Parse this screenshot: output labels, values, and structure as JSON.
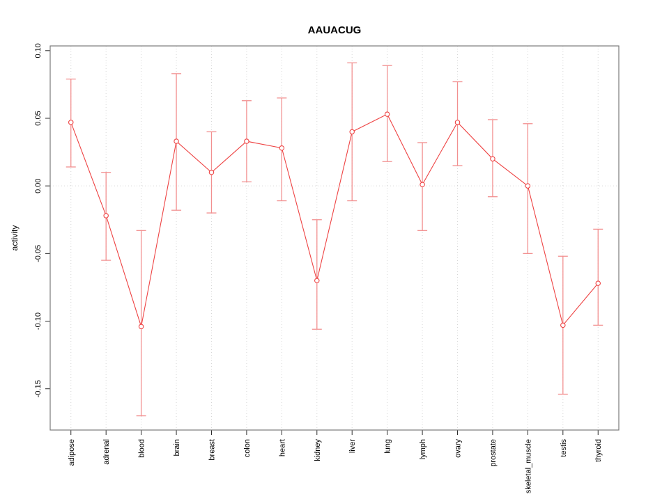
{
  "chart_data": {
    "type": "line",
    "title": "AAUACUG",
    "xlabel": "",
    "ylabel": "activity",
    "marker": "open-circle",
    "grid": {
      "vertical_per_category": true,
      "horizontal_at_zero": true,
      "style": "dotted"
    },
    "legend": null,
    "categories": [
      "adipose",
      "adrenal",
      "blood",
      "brain",
      "breast",
      "colon",
      "heart",
      "kidney",
      "liver",
      "lung",
      "lymph",
      "ovary",
      "prostate",
      "skeletal_muscle",
      "testis",
      "thyroid"
    ],
    "series": [
      {
        "name": "activity",
        "values": [
          0.047,
          -0.022,
          -0.104,
          0.033,
          0.01,
          0.033,
          0.028,
          -0.07,
          0.04,
          0.053,
          0.001,
          0.047,
          0.02,
          0.0,
          -0.103,
          -0.072
        ],
        "error_high": [
          0.079,
          0.01,
          -0.033,
          0.083,
          0.04,
          0.063,
          0.065,
          -0.025,
          0.091,
          0.089,
          0.032,
          0.077,
          0.049,
          0.046,
          -0.052,
          -0.032
        ],
        "error_low": [
          0.014,
          -0.055,
          -0.17,
          -0.018,
          -0.02,
          0.003,
          -0.011,
          -0.106,
          -0.011,
          0.018,
          -0.033,
          0.015,
          -0.008,
          -0.05,
          -0.154,
          -0.103
        ]
      }
    ],
    "yticks": [
      0.1,
      0.05,
      0.0,
      -0.05,
      -0.1,
      -0.15
    ],
    "ytick_labels": [
      "0.10",
      "0.05",
      "0.00",
      "-0.05",
      "-0.10",
      "-0.15"
    ],
    "ylim": [
      -0.1805,
      0.1035
    ],
    "xlim": [
      0.41,
      16.59
    ],
    "colors": {
      "series": "#ee4343",
      "error_bars": "#f29090",
      "grid": "#d6d6d6",
      "box": "#7a7a7a",
      "tick": "#2a2a2a",
      "text": "#000000",
      "background": "#ffffff"
    }
  }
}
